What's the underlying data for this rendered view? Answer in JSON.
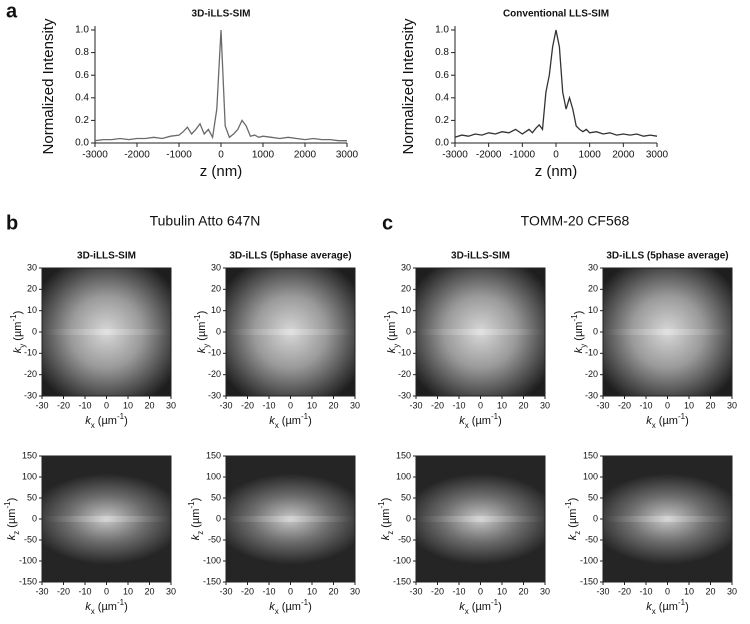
{
  "panel_labels": [
    "a",
    "b",
    "c"
  ],
  "group_titles": [
    "Tubulin Atto 647N",
    "TOMM-20 CF568"
  ],
  "chart_data": [
    {
      "type": "line",
      "title": "3D-iLLS-SIM",
      "x_label": "z (nm)",
      "y_label": "Normalized Intensity",
      "x": [
        -3000,
        -2800,
        -2600,
        -2400,
        -2200,
        -2000,
        -1800,
        -1600,
        -1400,
        -1200,
        -1000,
        -900,
        -800,
        -700,
        -600,
        -500,
        -400,
        -300,
        -200,
        -100,
        0,
        100,
        200,
        300,
        400,
        500,
        600,
        700,
        800,
        900,
        1000,
        1200,
        1400,
        1600,
        1800,
        2000,
        2200,
        2400,
        2600,
        2800,
        3000
      ],
      "series": [
        {
          "color": "#6a6a6a",
          "values": [
            0.02,
            0.03,
            0.03,
            0.04,
            0.03,
            0.04,
            0.04,
            0.05,
            0.04,
            0.06,
            0.07,
            0.1,
            0.14,
            0.08,
            0.12,
            0.17,
            0.08,
            0.12,
            0.05,
            0.3,
            1.0,
            0.15,
            0.05,
            0.08,
            0.12,
            0.2,
            0.15,
            0.06,
            0.07,
            0.05,
            0.06,
            0.05,
            0.04,
            0.05,
            0.04,
            0.03,
            0.04,
            0.03,
            0.03,
            0.02,
            0.02
          ]
        }
      ],
      "xlim": [
        -3000,
        3000
      ],
      "xticks": [
        -3000,
        -2000,
        -1000,
        0,
        1000,
        2000,
        3000
      ],
      "ylim": [
        0,
        1.0
      ],
      "yticks": [
        {
          "value": 0,
          "label": "0.0"
        },
        0.2,
        0.4,
        0.6,
        0.8,
        {
          "value": 1.0,
          "label": "1.0"
        }
      ]
    },
    {
      "type": "line",
      "title": "Conventional LLS-SIM",
      "x_label": "z (nm)",
      "y_label": "Normalized Intensity",
      "x": [
        -3000,
        -2800,
        -2600,
        -2400,
        -2200,
        -2000,
        -1800,
        -1600,
        -1400,
        -1200,
        -1000,
        -900,
        -800,
        -700,
        -600,
        -500,
        -400,
        -300,
        -200,
        -100,
        0,
        100,
        200,
        300,
        400,
        500,
        600,
        700,
        800,
        900,
        1000,
        1200,
        1400,
        1600,
        1800,
        2000,
        2200,
        2400,
        2600,
        2800,
        3000
      ],
      "series": [
        {
          "color": "#333333",
          "values": [
            0.05,
            0.07,
            0.06,
            0.08,
            0.07,
            0.09,
            0.08,
            0.1,
            0.09,
            0.12,
            0.08,
            0.1,
            0.12,
            0.09,
            0.13,
            0.16,
            0.12,
            0.45,
            0.6,
            0.85,
            1.0,
            0.85,
            0.45,
            0.3,
            0.4,
            0.3,
            0.15,
            0.12,
            0.1,
            0.12,
            0.09,
            0.1,
            0.08,
            0.09,
            0.07,
            0.08,
            0.07,
            0.08,
            0.06,
            0.07,
            0.06
          ]
        }
      ],
      "xlim": [
        -3000,
        3000
      ],
      "xticks": [
        -3000,
        -2000,
        -1000,
        0,
        1000,
        2000,
        3000
      ],
      "ylim": [
        0,
        1.0
      ],
      "yticks": [
        {
          "value": 0,
          "label": "0.0"
        },
        0.2,
        0.4,
        0.6,
        0.8,
        {
          "value": 1.0,
          "label": "1.0"
        }
      ]
    },
    {
      "type": "image",
      "title": "3D-iLLS-SIM",
      "x_label": [
        "k",
        "x",
        " (µm",
        "-1",
        ")"
      ],
      "y_label": [
        "k",
        "y",
        " (µm",
        "-1",
        ")"
      ],
      "xlim": [
        -30,
        30
      ],
      "xticks": [
        -30,
        -20,
        -10,
        0,
        10,
        20,
        30
      ],
      "ylim": [
        -30,
        30
      ],
      "yticks": [
        -30,
        -20,
        -10,
        0,
        10,
        20,
        30
      ]
    },
    {
      "type": "image",
      "title": "3D-iLLS (5phase average)",
      "x_label": [
        "k",
        "x",
        " (µm",
        "-1",
        ")"
      ],
      "y_label": [
        "k",
        "y",
        " (µm",
        "-1",
        ")"
      ],
      "xlim": [
        -30,
        30
      ],
      "xticks": [
        -30,
        -20,
        -10,
        0,
        10,
        20,
        30
      ],
      "ylim": [
        -30,
        30
      ],
      "yticks": [
        -30,
        -20,
        -10,
        0,
        10,
        20,
        30
      ]
    },
    {
      "type": "image",
      "title": "3D-iLLS-SIM",
      "x_label": [
        "k",
        "x",
        " (µm",
        "-1",
        ")"
      ],
      "y_label": [
        "k",
        "y",
        " (µm",
        "-1",
        ")"
      ],
      "xlim": [
        -30,
        30
      ],
      "xticks": [
        -30,
        -20,
        -10,
        0,
        10,
        20,
        30
      ],
      "ylim": [
        -30,
        30
      ],
      "yticks": [
        -30,
        -20,
        -10,
        0,
        10,
        20,
        30
      ]
    },
    {
      "type": "image",
      "title": "3D-iLLS (5phase average)",
      "x_label": [
        "k",
        "x",
        " (µm",
        "-1",
        ")"
      ],
      "y_label": [
        "k",
        "y",
        " (µm",
        "-1",
        ")"
      ],
      "xlim": [
        -30,
        30
      ],
      "xticks": [
        -30,
        -20,
        -10,
        0,
        10,
        20,
        30
      ],
      "ylim": [
        -30,
        30
      ],
      "yticks": [
        -30,
        -20,
        -10,
        0,
        10,
        20,
        30
      ]
    },
    {
      "type": "image",
      "x_label": [
        "k",
        "x",
        " (µm",
        "-1",
        ")"
      ],
      "y_label": [
        "k",
        "z",
        " (µm",
        "-1",
        ")"
      ],
      "xlim": [
        -30,
        30
      ],
      "xticks": [
        -30,
        -20,
        -10,
        0,
        10,
        20,
        30
      ],
      "ylim": [
        -150,
        150
      ],
      "yticks": [
        -150,
        -100,
        -50,
        0,
        50,
        100,
        150
      ]
    },
    {
      "type": "image",
      "x_label": [
        "k",
        "x",
        " (µm",
        "-1",
        ")"
      ],
      "y_label": [
        "k",
        "z",
        " (µm",
        "-1",
        ")"
      ],
      "xlim": [
        -30,
        30
      ],
      "xticks": [
        -30,
        -20,
        -10,
        0,
        10,
        20,
        30
      ],
      "ylim": [
        -150,
        150
      ],
      "yticks": [
        -150,
        -100,
        -50,
        0,
        50,
        100,
        150
      ]
    },
    {
      "type": "image",
      "x_label": [
        "k",
        "x",
        " (µm",
        "-1",
        ")"
      ],
      "y_label": [
        "k",
        "z",
        " (µm",
        "-1",
        ")"
      ],
      "xlim": [
        -30,
        30
      ],
      "xticks": [
        -30,
        -20,
        -10,
        0,
        10,
        20,
        30
      ],
      "ylim": [
        -150,
        150
      ],
      "yticks": [
        -150,
        -100,
        -50,
        0,
        50,
        100,
        150
      ]
    },
    {
      "type": "image",
      "x_label": [
        "k",
        "x",
        " (µm",
        "-1",
        ")"
      ],
      "y_label": [
        "k",
        "z",
        " (µm",
        "-1",
        ")"
      ],
      "xlim": [
        -30,
        30
      ],
      "xticks": [
        -30,
        -20,
        -10,
        0,
        10,
        20,
        30
      ],
      "ylim": [
        -150,
        150
      ],
      "yticks": [
        -150,
        -100,
        -50,
        0,
        50,
        100,
        150
      ]
    }
  ]
}
